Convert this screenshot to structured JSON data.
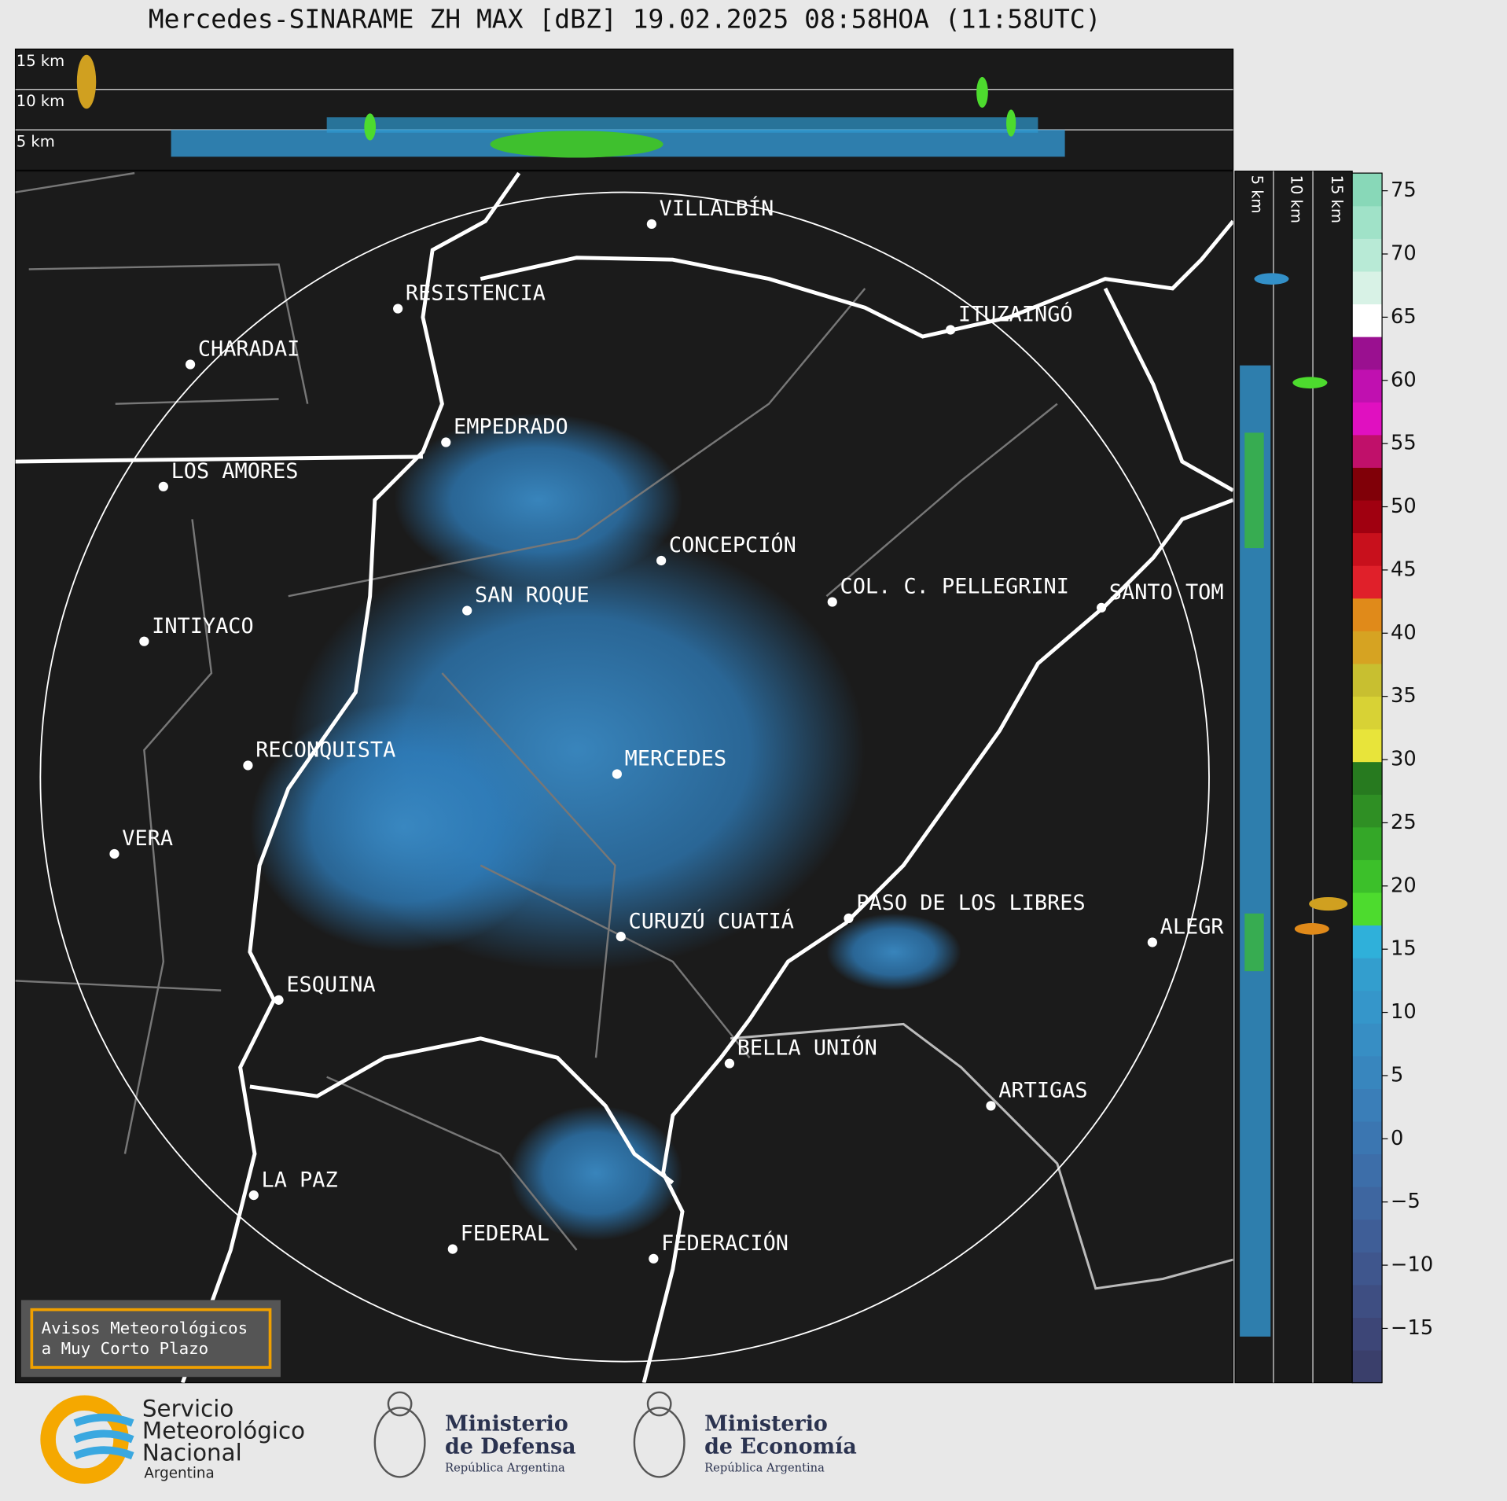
{
  "title": "Mercedes-SINARAME ZH MAX [dBZ] 19.02.2025 08:58HOA (11:58UTC)",
  "top_panel": {
    "labels": [
      "15 km",
      "10 km",
      "5 km"
    ]
  },
  "side_panel": {
    "labels": [
      "5 km",
      "10 km",
      "15 km"
    ]
  },
  "cities": [
    "VILLALBÍN",
    "RESISTENCIA",
    "CHARADAI",
    "ITUZAINGÓ",
    "EMPEDRADO",
    "LOS AMORES",
    "CONCEPCIÓN",
    "SAN ROQUE",
    "COL. C. PELLEGRINI",
    "SANTO TOM",
    "INTIYACO",
    "RECONQUISTA",
    "MERCEDES",
    "VERA",
    "CURUZÚ CUATIÁ",
    "PASO DE LOS LIBRES",
    "ALEGR",
    "ESQUINA",
    "BELLA UNIÓN",
    "ARTIGAS",
    "LA PAZ",
    "FEDERAL",
    "FEDERACIÓN"
  ],
  "colorbar": {
    "ylim": [
      -19.3,
      76.4
    ],
    "yticks": [
      {
        "value": -15,
        "label": "−15"
      },
      {
        "value": -10,
        "label": "−10"
      },
      {
        "value": -5,
        "label": "−5"
      },
      0,
      5,
      10,
      15,
      20,
      25,
      30,
      35,
      40,
      45,
      50,
      55,
      60,
      65,
      70,
      75
    ],
    "colors": [
      "#3a3f6b",
      "#3d4677",
      "#3e4e82",
      "#3f568d",
      "#3f5e97",
      "#3e66a0",
      "#3d6ea9",
      "#3b76b1",
      "#3a7eb8",
      "#3886be",
      "#378ec4",
      "#3596ca",
      "#339ece",
      "#2fb0da",
      "#4ddb2e",
      "#3cc02a",
      "#34a728",
      "#2f8f24",
      "#277a1f",
      "#e8e43a",
      "#d8d235",
      "#c8bf30",
      "#d6a322",
      "#e08a1a",
      "#e0202a",
      "#c8101c",
      "#a00010",
      "#800008",
      "#c0106a",
      "#e010c0",
      "#c010b0",
      "#9a1090",
      "#ffffff",
      "#d8f2e6",
      "#b8ead6",
      "#a0e2c8",
      "#88d8b8"
    ]
  },
  "notice": [
    "Avisos Meteorológicos",
    "a Muy Corto Plazo"
  ],
  "logos": {
    "smn": [
      "Servicio",
      "Meteorológico",
      "Nacional",
      "Argentina"
    ],
    "defensa": [
      "Ministerio",
      "de Defensa",
      "República Argentina"
    ],
    "economia": [
      "Ministerio",
      "de Economía",
      "República Argentina"
    ]
  }
}
